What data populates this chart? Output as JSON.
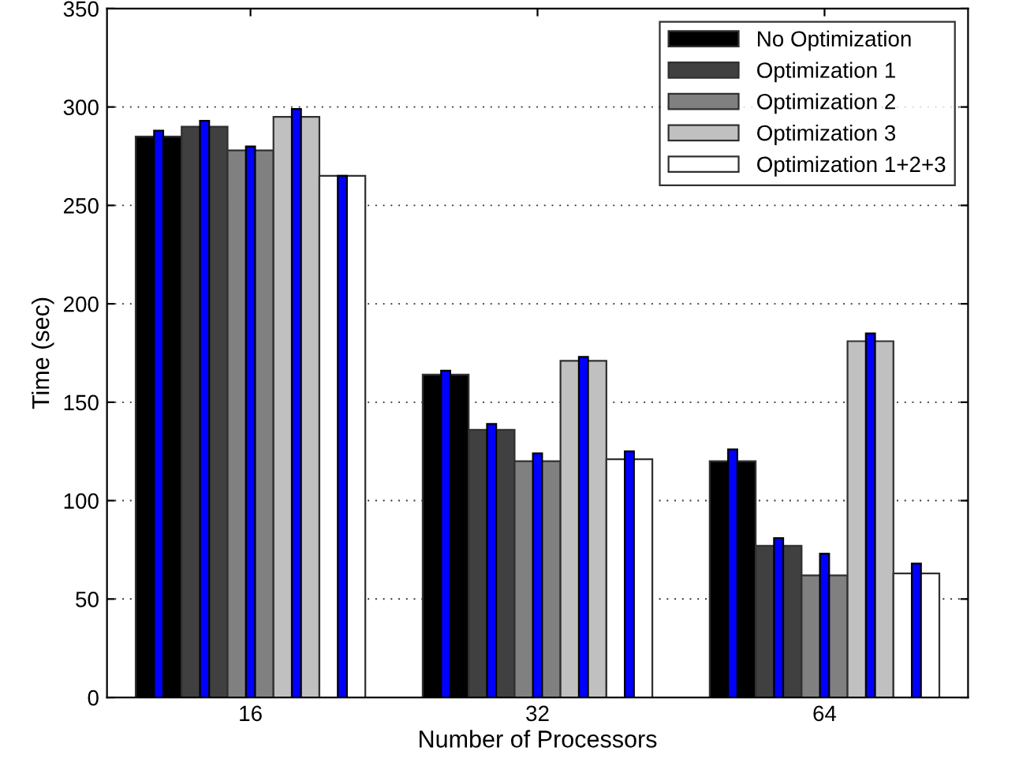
{
  "chart_data": {
    "type": "bar",
    "xlabel": "Number of Processors",
    "ylabel": "Time (sec)",
    "categories": [
      "16",
      "32",
      "64"
    ],
    "series": [
      {
        "name": "No Optimization",
        "color": "#000000",
        "values": [
          285,
          164,
          120
        ]
      },
      {
        "name": "Optimization 1",
        "color": "#404040",
        "values": [
          290,
          136,
          77
        ]
      },
      {
        "name": "Optimization 2",
        "color": "#808080",
        "values": [
          278,
          120,
          62
        ]
      },
      {
        "name": "Optimization 3",
        "color": "#c0c0c0",
        "values": [
          295,
          171,
          181
        ]
      },
      {
        "name": "Optimization 1+2+3",
        "color": "#ffffff",
        "values": [
          265,
          121,
          63
        ]
      },
      {
        "color": "#0000ff",
        "values": [
          288,
          166,
          126
        ]
      },
      {
        "color": "#0000ff",
        "values": [
          293,
          139,
          81
        ]
      },
      {
        "color": "#0000ff",
        "values": [
          280,
          124,
          73
        ]
      },
      {
        "color": "#0000ff",
        "values": [
          299,
          173,
          185
        ]
      },
      {
        "color": "#0000ff",
        "values": [
          265,
          125,
          68
        ]
      }
    ],
    "ylim": [
      0,
      350
    ],
    "yticks": [
      0,
      50,
      100,
      150,
      200,
      250,
      300,
      350
    ],
    "grid": "y",
    "legend": "top right"
  }
}
